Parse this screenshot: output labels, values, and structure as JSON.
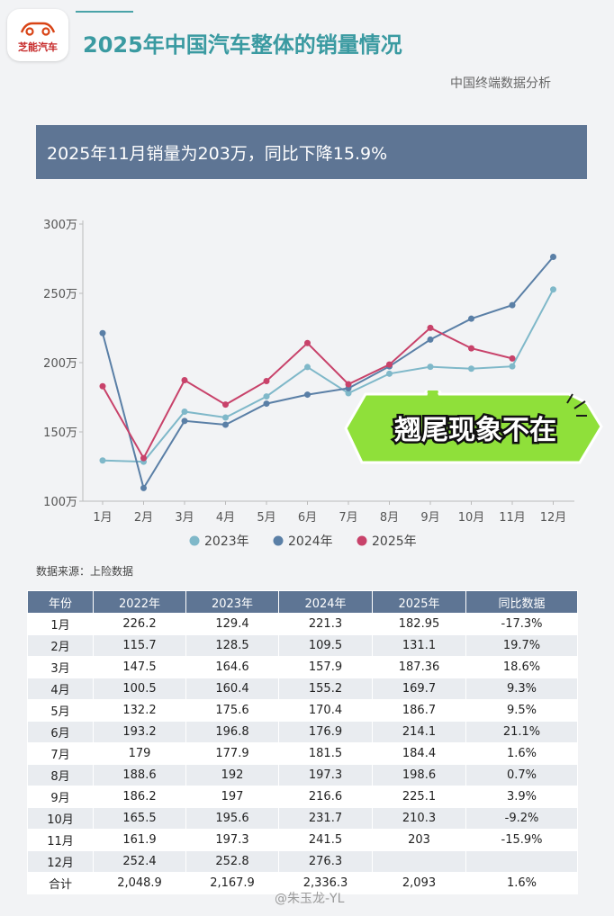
{
  "logo": {
    "text": "芝能汽车"
  },
  "title": "2025年中国汽车整体的销量情况",
  "subtitle": "中国终端数据分析",
  "banner": "2025年11月销量为203万，同比下降15.9%",
  "callout": "翘尾现象不在",
  "source": "数据来源：上险数据",
  "watermark": "@朱玉龙-YL",
  "colors": {
    "s2023": "#7fb8c9",
    "s2024": "#5a7fa6",
    "s2025": "#c8426a",
    "header": "#5e7594",
    "callout": "#8fe03a"
  },
  "chart_data": {
    "type": "line",
    "categories": [
      "1月",
      "2月",
      "3月",
      "4月",
      "5月",
      "6月",
      "7月",
      "8月",
      "9月",
      "10月",
      "11月",
      "12月"
    ],
    "y_ticks": [
      "100万",
      "150万",
      "200万",
      "250万",
      "300万"
    ],
    "ylim": [
      100,
      300
    ],
    "legend_position": "bottom",
    "series": [
      {
        "name": "2023年",
        "color": "#7fb8c9",
        "values": [
          129.4,
          128.5,
          164.6,
          160.4,
          175.6,
          196.8,
          177.9,
          192,
          197,
          195.6,
          197.3,
          252.8
        ]
      },
      {
        "name": "2024年",
        "color": "#5a7fa6",
        "values": [
          221.3,
          109.5,
          157.9,
          155.2,
          170.4,
          176.9,
          181.5,
          197.3,
          216.6,
          231.7,
          241.5,
          276.3
        ]
      },
      {
        "name": "2025年",
        "color": "#c8426a",
        "values": [
          182.95,
          131.1,
          187.36,
          169.7,
          186.7,
          214.1,
          184.4,
          198.6,
          225.1,
          210.3,
          203,
          null
        ]
      }
    ]
  },
  "table": {
    "headers": [
      "年份",
      "2022年",
      "2023年",
      "2024年",
      "2025年",
      "同比数据"
    ],
    "rows": [
      [
        "1月",
        "226.2",
        "129.4",
        "221.3",
        "182.95",
        "-17.3%"
      ],
      [
        "2月",
        "115.7",
        "128.5",
        "109.5",
        "131.1",
        "19.7%"
      ],
      [
        "3月",
        "147.5",
        "164.6",
        "157.9",
        "187.36",
        "18.6%"
      ],
      [
        "4月",
        "100.5",
        "160.4",
        "155.2",
        "169.7",
        "9.3%"
      ],
      [
        "5月",
        "132.2",
        "175.6",
        "170.4",
        "186.7",
        "9.5%"
      ],
      [
        "6月",
        "193.2",
        "196.8",
        "176.9",
        "214.1",
        "21.1%"
      ],
      [
        "7月",
        "179",
        "177.9",
        "181.5",
        "184.4",
        "1.6%"
      ],
      [
        "8月",
        "188.6",
        "192",
        "197.3",
        "198.6",
        "0.7%"
      ],
      [
        "9月",
        "186.2",
        "197",
        "216.6",
        "225.1",
        "3.9%"
      ],
      [
        "10月",
        "165.5",
        "195.6",
        "231.7",
        "210.3",
        "-9.2%"
      ],
      [
        "11月",
        "161.9",
        "197.3",
        "241.5",
        "203",
        "-15.9%"
      ],
      [
        "12月",
        "252.4",
        "252.8",
        "276.3",
        "",
        ""
      ],
      [
        "合计",
        "2,048.9",
        "2,167.9",
        "2,336.3",
        "2,093",
        "1.6%"
      ]
    ]
  }
}
